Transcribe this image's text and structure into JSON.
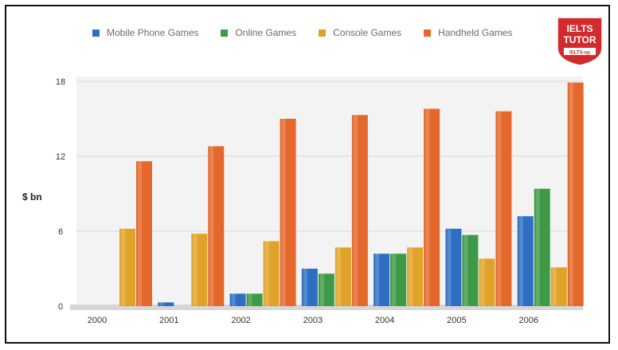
{
  "chart_data": {
    "type": "bar",
    "title": "",
    "xlabel": "",
    "ylabel": "$ bn",
    "ylim": [
      0,
      18
    ],
    "yticks": [
      0,
      6,
      12,
      18
    ],
    "grid": true,
    "legend_position": "top",
    "categories": [
      "2000",
      "2001",
      "2002",
      "2003",
      "2004",
      "2005",
      "2006"
    ],
    "series": [
      {
        "name": "Mobile Phone Games",
        "color": "#2e6fc4",
        "values": [
          0,
          0.3,
          1.0,
          3.0,
          4.2,
          6.2,
          7.2
        ]
      },
      {
        "name": "Online Games",
        "color": "#3f9a48",
        "values": [
          0,
          0,
          1.0,
          2.6,
          4.2,
          5.7,
          9.4
        ]
      },
      {
        "name": "Console Games",
        "color": "#e0a329",
        "values": [
          6.2,
          5.8,
          5.2,
          4.7,
          4.7,
          3.8,
          3.1
        ]
      },
      {
        "name": "Handheld Games",
        "color": "#e4682b",
        "values": [
          11.6,
          12.8,
          15.0,
          15.3,
          15.8,
          15.6,
          17.9
        ]
      }
    ]
  },
  "logo": {
    "line1": "IELTS",
    "line2": "TUTOR",
    "line3": "IELTS-up"
  }
}
